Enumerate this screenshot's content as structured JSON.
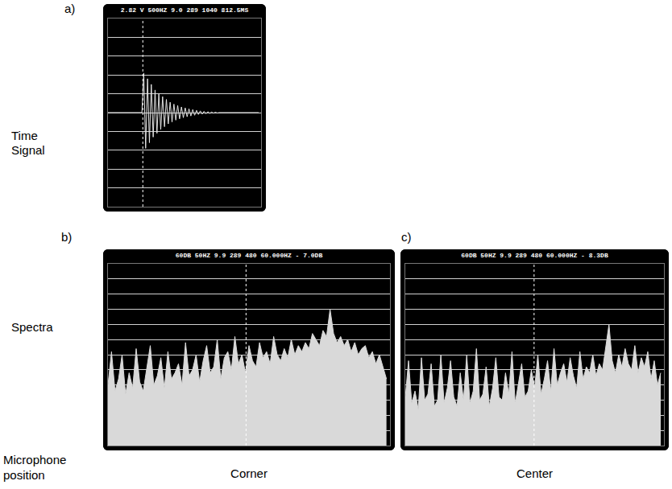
{
  "footer_label": "Microphone position",
  "chart_data": [
    {
      "panel": "a)",
      "row_label": "Time Signal",
      "type": "line",
      "title": "2.82 V 500HZ 9.0 289 1040 812.5MS",
      "x": [
        0,
        10,
        20,
        30,
        40,
        50,
        60,
        70,
        80,
        90,
        100,
        110,
        120,
        130,
        140,
        150,
        160,
        170,
        180,
        190,
        200,
        210,
        220,
        230,
        240,
        250,
        260,
        270,
        280,
        290,
        300,
        310,
        320,
        330,
        340,
        350,
        360,
        370,
        380,
        390,
        400,
        410,
        420,
        430,
        440,
        450,
        460,
        470,
        480,
        490,
        500,
        510,
        520,
        530,
        540,
        550,
        560,
        570,
        580,
        590,
        600,
        610,
        620,
        630,
        640,
        650,
        660,
        670,
        680,
        690,
        700,
        710,
        720,
        730,
        740,
        750,
        760,
        770,
        780,
        790,
        800
      ],
      "values": [
        0,
        0,
        0,
        0,
        0,
        0,
        0,
        0,
        0,
        0,
        0,
        0,
        0,
        0,
        0,
        0,
        0,
        0,
        0,
        2.1,
        -1.9,
        1.8,
        -1.6,
        1.5,
        -1.3,
        1.2,
        -1.1,
        1.0,
        -0.9,
        0.85,
        -0.75,
        0.7,
        -0.6,
        0.55,
        -0.5,
        0.45,
        -0.4,
        0.38,
        -0.33,
        0.3,
        -0.27,
        0.25,
        -0.22,
        0.2,
        -0.18,
        0.16,
        -0.14,
        0.12,
        -0.1,
        0.09,
        -0.08,
        0.07,
        -0.06,
        0.05,
        -0.04,
        0.03,
        -0.03,
        0.02,
        -0.02,
        0,
        0,
        0,
        0,
        0,
        0,
        0,
        0,
        0,
        0,
        0,
        0,
        0,
        0,
        0,
        0,
        0,
        0,
        0,
        0,
        0,
        0
      ],
      "xlim": [
        0,
        812.5
      ],
      "ylim": [
        -5,
        5
      ],
      "yticks": [
        -5,
        -4,
        -3,
        -2,
        -1,
        0,
        1,
        2,
        3,
        4,
        5
      ],
      "cursor": 185,
      "grid": true,
      "tick_labels": false,
      "color": "#e6e6e6"
    },
    {
      "panel": "b)",
      "row_label": "Spectra",
      "caption": "Corner",
      "type": "area",
      "title": "60DB 50HZ 9.9 289 480 60.000HZ - 7.0DB",
      "x": [
        0,
        6,
        12,
        18,
        24,
        30,
        36,
        42,
        48,
        54,
        60,
        66,
        72,
        78,
        84,
        90,
        96,
        102,
        108,
        114,
        120,
        126,
        132,
        138,
        144,
        150,
        156,
        162,
        168,
        174,
        180,
        186,
        192,
        198,
        204,
        210,
        216,
        222,
        228,
        234,
        240,
        246,
        252,
        258,
        264,
        270,
        276,
        282,
        288,
        294,
        300,
        306,
        312,
        318,
        324,
        330,
        336,
        342,
        348,
        354,
        360,
        366,
        372,
        378,
        384,
        390,
        396,
        402,
        408,
        414,
        420,
        426,
        432,
        438,
        444,
        450,
        456,
        462,
        468,
        474
      ],
      "values": [
        20,
        31,
        18,
        22,
        30,
        17,
        24,
        19,
        32,
        21,
        18,
        26,
        33,
        20,
        23,
        29,
        19,
        31,
        22,
        24,
        27,
        20,
        34,
        23,
        25,
        30,
        21,
        28,
        33,
        24,
        26,
        35,
        22,
        29,
        31,
        25,
        36,
        27,
        30,
        24,
        33,
        28,
        26,
        34,
        29,
        31,
        27,
        36,
        30,
        28,
        32,
        29,
        35,
        30,
        33,
        31,
        34,
        32,
        37,
        35,
        33,
        38,
        36,
        45,
        37,
        34,
        36,
        33,
        35,
        31,
        34,
        30,
        32,
        33,
        29,
        31,
        27,
        30,
        26,
        22
      ],
      "xlim": [
        0,
        480
      ],
      "ylim": [
        0,
        60
      ],
      "yticks": [
        0,
        5,
        10,
        15,
        20,
        25,
        30,
        35,
        40,
        45,
        50,
        55,
        60
      ],
      "cursor": 235,
      "grid": true,
      "tick_labels": false,
      "color": "#d9d9d9"
    },
    {
      "panel": "c)",
      "caption": "Center",
      "type": "area",
      "title": "60DB 50HZ 9.9 289 480 60.000HZ - 8.3DB",
      "x": [
        0,
        6,
        12,
        18,
        24,
        30,
        36,
        42,
        48,
        54,
        60,
        66,
        72,
        78,
        84,
        90,
        96,
        102,
        108,
        114,
        120,
        126,
        132,
        138,
        144,
        150,
        156,
        162,
        168,
        174,
        180,
        186,
        192,
        198,
        204,
        210,
        216,
        222,
        228,
        234,
        240,
        246,
        252,
        258,
        264,
        270,
        276,
        282,
        288,
        294,
        300,
        306,
        312,
        318,
        324,
        330,
        336,
        342,
        348,
        354,
        360,
        366,
        372,
        378,
        384,
        390,
        396,
        402,
        408,
        414,
        420,
        426,
        432,
        438,
        444,
        450,
        456,
        462,
        468,
        474
      ],
      "values": [
        16,
        28,
        14,
        18,
        12,
        29,
        15,
        17,
        27,
        13,
        15,
        30,
        14,
        19,
        28,
        16,
        13,
        24,
        15,
        30,
        14,
        18,
        32,
        15,
        17,
        26,
        13,
        19,
        29,
        16,
        15,
        24,
        17,
        31,
        14,
        20,
        27,
        16,
        18,
        25,
        19,
        30,
        17,
        22,
        28,
        18,
        32,
        20,
        24,
        27,
        21,
        29,
        23,
        19,
        31,
        22,
        26,
        24,
        30,
        23,
        27,
        25,
        33,
        40,
        28,
        24,
        30,
        26,
        32,
        27,
        25,
        33,
        24,
        29,
        26,
        31,
        22,
        28,
        20,
        24
      ],
      "xlim": [
        0,
        480
      ],
      "ylim": [
        0,
        60
      ],
      "yticks": [
        0,
        5,
        10,
        15,
        20,
        25,
        30,
        35,
        40,
        45,
        50,
        55,
        60
      ],
      "cursor": 239,
      "grid": true,
      "tick_labels": false,
      "color": "#d9d9d9"
    }
  ]
}
